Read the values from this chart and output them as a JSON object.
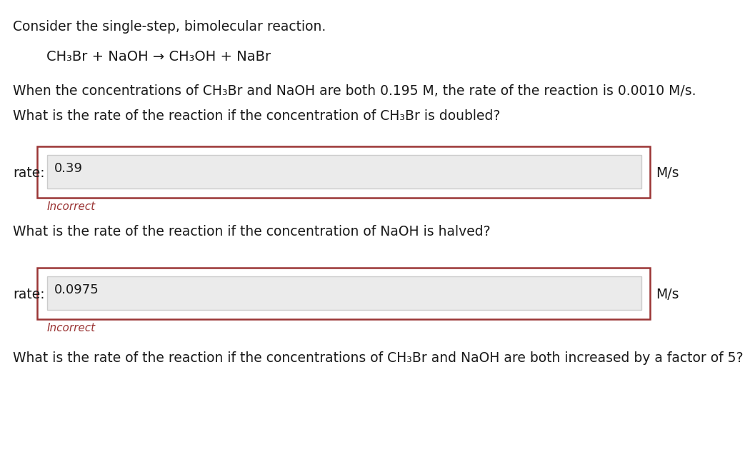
{
  "background_color": "#ffffff",
  "title_text": "Consider the single-step, bimolecular reaction.",
  "reaction_text": "CH₃Br + NaOH → CH₃OH + NaBr",
  "context_text": "When the concentrations of CH₃Br and NaOH are both 0.195 M, the rate of the reaction is 0.0010 M/s.",
  "q1_text": "What is the rate of the reaction if the concentration of CH₃Br is doubled?",
  "q1_answer": "0.39",
  "q1_incorrect": "Incorrect",
  "q2_text": "What is the rate of the reaction if the concentration of NaOH is halved?",
  "q2_answer": "0.0975",
  "q2_incorrect": "Incorrect",
  "q3_text": "What is the rate of the reaction if the concentrations of CH₃Br and NaOH are both increased by a factor of 5?",
  "rate_label": "rate:",
  "unit_label": "M/s",
  "box_border_color": "#9b3535",
  "inner_box_color": "#ebebeb",
  "inner_box_border_color": "#cccccc",
  "incorrect_color": "#9b3535",
  "text_color": "#1a1a1a",
  "font_size_main": 13.5,
  "font_size_reaction": 14,
  "font_size_answer": 13,
  "font_size_incorrect": 11
}
